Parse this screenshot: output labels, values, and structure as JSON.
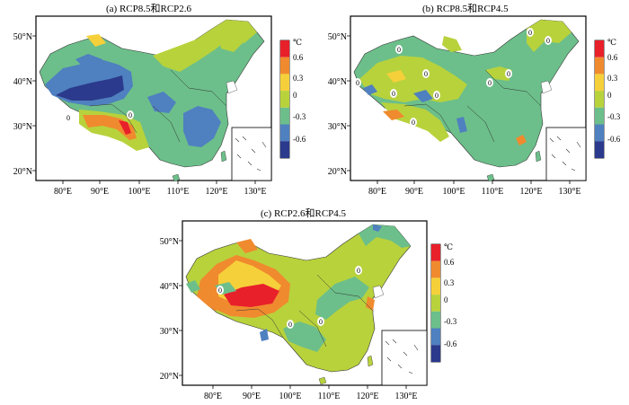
{
  "panels": [
    {
      "id": "a",
      "title": "(a) RCP8.5和RCP2.6",
      "lat_labels": [
        "50°N",
        "40°N",
        "30°N",
        "20°N"
      ],
      "lon_labels": [
        "80°E",
        "90°E",
        "100°E",
        "110°E",
        "120°E",
        "130°E"
      ],
      "contour_labels": [
        "0",
        "0"
      ]
    },
    {
      "id": "b",
      "title": "(b) RCP8.5和RCP4.5",
      "lat_labels": [
        "50°N",
        "40°N",
        "30°N",
        "20°N"
      ],
      "lon_labels": [
        "80°E",
        "90°E",
        "100°E",
        "110°E",
        "120°E",
        "130°E"
      ],
      "contour_labels": [
        "0",
        "0",
        "0",
        "0",
        "0",
        "0",
        "0",
        "0",
        "0",
        "0"
      ]
    },
    {
      "id": "c",
      "title": "(c) RCP2.6和RCP4.5",
      "lat_labels": [
        "50°N",
        "40°N",
        "30°N",
        "20°N"
      ],
      "lon_labels": [
        "80°E",
        "90°E",
        "100°E",
        "110°E",
        "120°E",
        "130°E"
      ],
      "contour_labels": [
        "0",
        "0",
        "0",
        "0"
      ]
    }
  ],
  "colorbar": {
    "unit": "℃",
    "ticks": [
      "0.6",
      "0.3",
      "0",
      "-0.3",
      "-0.6"
    ],
    "colors": [
      "#e8202a",
      "#f08a2e",
      "#f5d03a",
      "#b8d23c",
      "#6cbf8a",
      "#4f80c0",
      "#2b3a8c"
    ]
  }
}
